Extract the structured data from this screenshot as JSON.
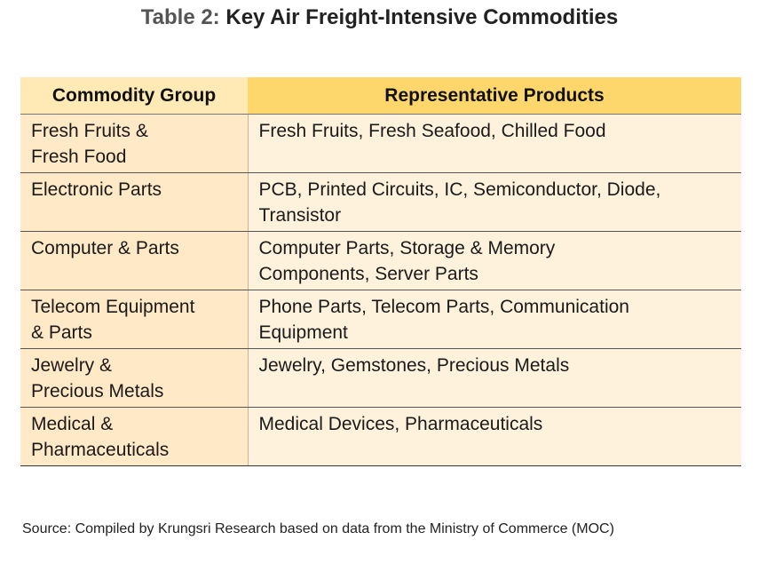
{
  "title": {
    "prefix": "Table 2:",
    "text": "Key Air Freight-Intensive Commodities"
  },
  "table": {
    "headers": [
      "Commodity Group",
      "Representative Products"
    ],
    "rows": [
      {
        "group": "Fresh Fruits &\nFresh Food",
        "products": "Fresh Fruits, Fresh Seafood, Chilled Food"
      },
      {
        "group": "Electronic Parts",
        "products": "PCB, Printed Circuits, IC, Semiconductor, Diode,\nTransistor"
      },
      {
        "group": "Computer & Parts",
        "products": "Computer Parts, Storage & Memory\nComponents, Server Parts"
      },
      {
        "group": "Telecom Equipment\n& Parts",
        "products": "Phone Parts, Telecom Parts, Communication\nEquipment"
      },
      {
        "group": "Jewelry &\nPrecious Metals",
        "products": "Jewelry, Gemstones, Precious Metals"
      },
      {
        "group": "Medical &\nPharmaceuticals",
        "products": "Medical Devices, Pharmaceuticals"
      }
    ]
  },
  "source": "Source: Compiled by Krungsri Research based on data from the Ministry of Commerce (MOC)"
}
